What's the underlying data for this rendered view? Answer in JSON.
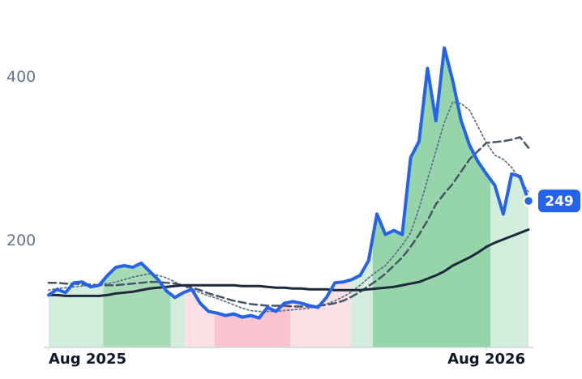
{
  "chart_data": {
    "type": "line",
    "x": [
      0,
      1,
      2,
      3,
      4,
      5,
      6,
      7,
      8,
      9,
      10,
      11,
      12,
      13,
      14,
      15,
      16,
      17,
      18,
      19,
      20,
      21,
      22,
      23,
      24,
      25,
      26,
      27,
      28,
      29,
      30,
      31,
      32,
      33,
      34,
      35,
      36,
      37,
      38,
      39,
      40,
      41,
      42,
      43,
      44,
      45,
      46,
      47,
      48,
      49,
      50,
      51,
      52,
      53,
      54,
      55,
      56,
      57
    ],
    "xlim": [
      0,
      57
    ],
    "xticks": [
      {
        "value": 0,
        "label": "Aug 2025"
      },
      {
        "value": 52,
        "label": "Aug 2026"
      }
    ],
    "ylim": [
      70,
      460
    ],
    "yticks": [
      200,
      400
    ],
    "grid": false,
    "series": [
      {
        "color": "#2563eb",
        "style": "solid",
        "width": 4,
        "values": [
          134,
          141,
          137,
          149,
          150,
          144,
          146,
          158,
          168,
          170,
          168,
          173,
          163,
          153,
          139,
          131,
          137,
          141,
          124,
          114,
          112,
          109,
          111,
          107,
          109,
          106,
          119,
          114,
          124,
          126,
          124,
          121,
          119,
          131,
          149,
          150,
          153,
          158,
          176,
          233,
          208,
          213,
          208,
          302,
          322,
          411,
          347,
          436,
          396,
          347,
          317,
          297,
          282,
          268,
          233,
          282,
          279,
          249
        ]
      },
      {
        "color": "#1e293b",
        "style": "solid",
        "width": 3,
        "values": [
          134,
          134,
          133,
          133,
          133,
          133,
          133,
          134,
          136,
          137,
          138,
          140,
          142,
          143,
          144,
          145,
          146,
          146,
          146,
          146,
          146,
          146,
          146,
          145,
          145,
          145,
          144,
          143,
          143,
          142,
          142,
          141,
          141,
          141,
          140,
          140,
          140,
          140,
          141,
          142,
          143,
          144,
          146,
          148,
          150,
          154,
          158,
          163,
          170,
          175,
          180,
          186,
          193,
          198,
          202,
          206,
          210,
          214
        ]
      },
      {
        "color": "#475569",
        "style": "dashed",
        "width": 2.5,
        "values": [
          149,
          149,
          148,
          148,
          147,
          147,
          146,
          146,
          146,
          147,
          148,
          149,
          150,
          150,
          149,
          148,
          146,
          143,
          140,
          136,
          133,
          130,
          127,
          125,
          123,
          122,
          121,
          121,
          121,
          120,
          120,
          120,
          121,
          122,
          124,
          127,
          132,
          138,
          145,
          152,
          160,
          170,
          180,
          193,
          208,
          225,
          245,
          258,
          270,
          285,
          300,
          310,
          320,
          321,
          322,
          324,
          327,
          314
        ]
      },
      {
        "color": "#64748b",
        "style": "dotted",
        "width": 1.8,
        "values": [
          140,
          142,
          143,
          144,
          145,
          146,
          147,
          148,
          150,
          153,
          156,
          158,
          160,
          158,
          155,
          150,
          145,
          141,
          137,
          133,
          130,
          126,
          122,
          118,
          115,
          114,
          114,
          114,
          115,
          116,
          117,
          118,
          120,
          123,
          127,
          132,
          138,
          146,
          155,
          163,
          170,
          182,
          195,
          210,
          240,
          275,
          310,
          345,
          370,
          368,
          360,
          340,
          320,
          305,
          300,
          290,
          275,
          260
        ]
      }
    ],
    "bands": [
      {
        "start": 0,
        "end": 6.5,
        "color": "#d3eedc"
      },
      {
        "start": 6.5,
        "end": 14.5,
        "color": "#a6dbb6"
      },
      {
        "start": 14.5,
        "end": 16.2,
        "color": "#d3eedc"
      },
      {
        "start": 16.2,
        "end": 19.7,
        "color": "#fde1e7"
      },
      {
        "start": 19.7,
        "end": 28.7,
        "color": "#f9c3cf"
      },
      {
        "start": 28.7,
        "end": 35.9,
        "color": "#fde1e7"
      },
      {
        "start": 35.9,
        "end": 38.5,
        "color": "#d3eedc"
      },
      {
        "start": 38.5,
        "end": 52.5,
        "color": "#96d4a9"
      },
      {
        "start": 52.5,
        "end": 57,
        "color": "#d3eedc"
      }
    ]
  }
}
